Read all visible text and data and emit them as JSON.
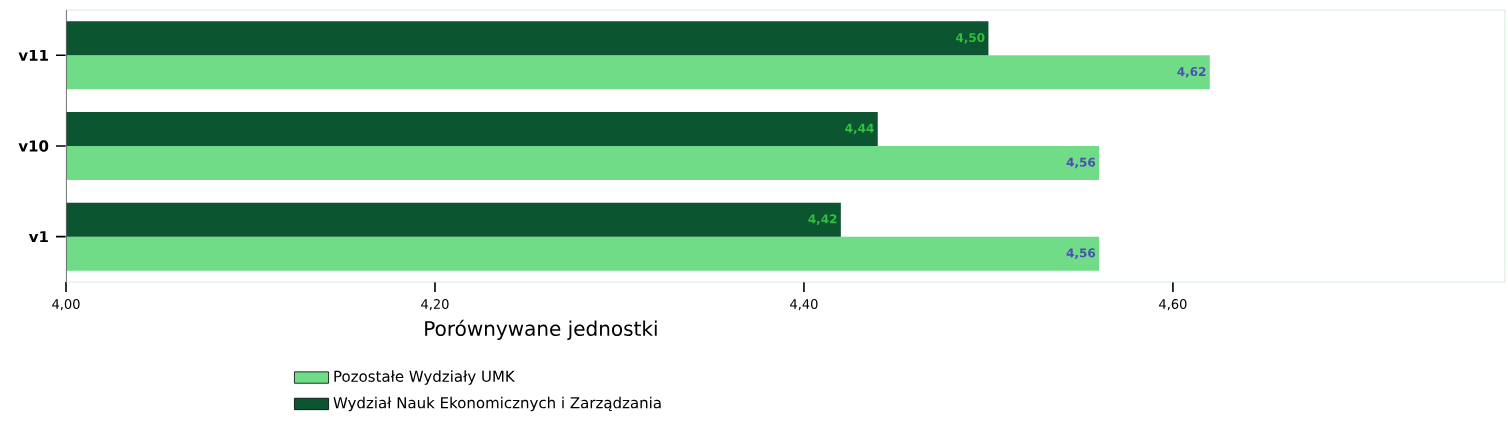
{
  "chart_data": {
    "type": "bar",
    "orientation": "horizontal",
    "xlabel": "Porównywane jednostki",
    "categories": [
      "v11",
      "v10",
      "v1"
    ],
    "series": [
      {
        "name": "Pozostałe Wydziały UMK",
        "color": "#70dc88",
        "values": [
          4.62,
          4.56,
          4.56
        ],
        "value_labels": [
          "4,62",
          "4,56",
          "4,56"
        ]
      },
      {
        "name": "Wydział Nauk Ekonomicznych i Zarządzania",
        "color": "#0b5530",
        "values": [
          4.5,
          4.44,
          4.42
        ],
        "value_labels": [
          "4,50",
          "4,44",
          "4,42"
        ]
      }
    ],
    "xlim": [
      4.0,
      4.78
    ],
    "xticks": [
      {
        "value": 4.0,
        "label": "4,00"
      },
      {
        "value": 4.2,
        "label": "4,20"
      },
      {
        "value": 4.4,
        "label": "4,40"
      },
      {
        "value": 4.6,
        "label": "4,60"
      }
    ],
    "legend": "bottom"
  }
}
